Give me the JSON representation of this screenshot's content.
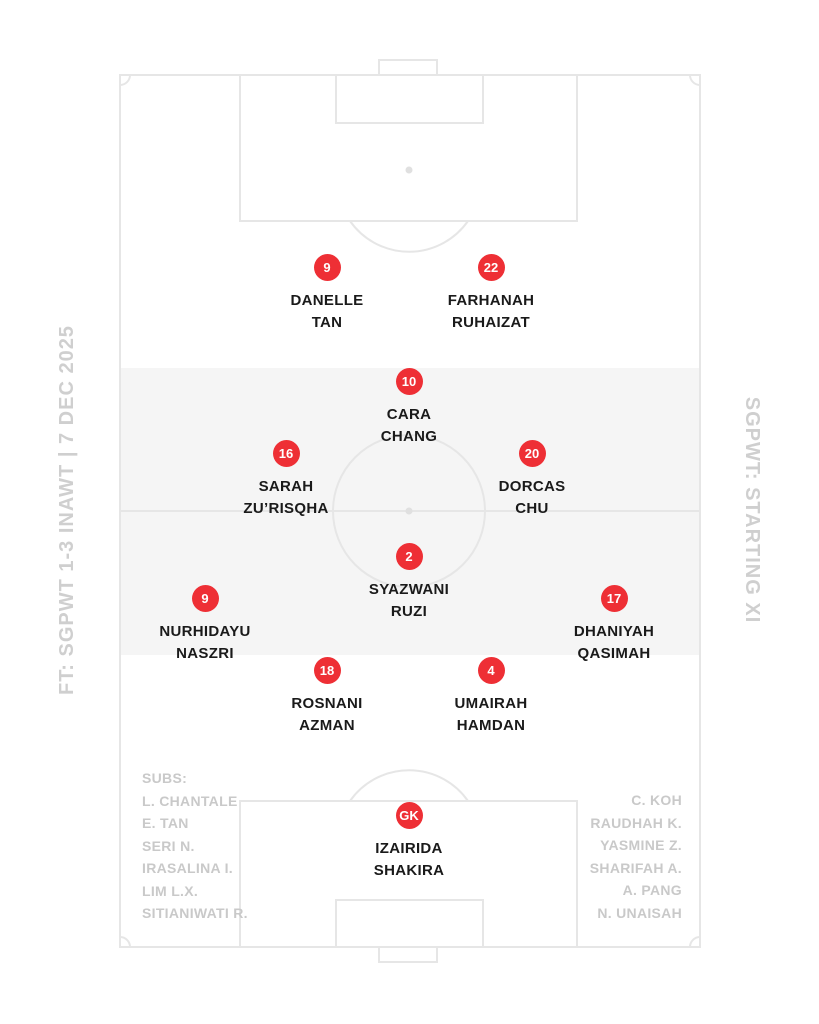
{
  "side_labels": {
    "left": "FT: SGPWT 1-3 INAWT | 7 DEC 2025",
    "right": "SGPWT: STARTING XI"
  },
  "colors": {
    "badge": "#ee2f35",
    "lines": "#e6e6e6",
    "band": "#f5f5f5",
    "names": "#1a1a1a",
    "subs": "#c9c9c9"
  },
  "players": [
    {
      "number": "9",
      "first": "DANELLE",
      "last": "TAN"
    },
    {
      "number": "22",
      "first": "FARHANAH",
      "last": "RUHAIZAT"
    },
    {
      "number": "10",
      "first": "CARA",
      "last": "CHANG"
    },
    {
      "number": "16",
      "first": "SARAH",
      "last": "ZU’RISQHA"
    },
    {
      "number": "20",
      "first": "DORCAS",
      "last": "CHU"
    },
    {
      "number": "2",
      "first": "SYAZWANI",
      "last": "RUZI"
    },
    {
      "number": "9",
      "first": "NURHIDAYU",
      "last": "NASZRI"
    },
    {
      "number": "17",
      "first": "DHANIYAH",
      "last": "QASIMAH"
    },
    {
      "number": "18",
      "first": "ROSNANI",
      "last": "AZMAN"
    },
    {
      "number": "4",
      "first": "UMAIRAH",
      "last": "HAMDAN"
    },
    {
      "number": "GK",
      "first": "IZAIRIDA",
      "last": "SHAKIRA"
    }
  ],
  "subs": {
    "title": "SUBS:",
    "left": [
      "L. CHANTALE",
      "E. TAN",
      "SERI N.",
      "IRASALINA I.",
      "LIM L.X.",
      "SITIANIWATI R."
    ],
    "right": [
      "C. KOH",
      "RAUDHAH K.",
      "YASMINE Z.",
      "SHARIFAH A.",
      "A. PANG",
      "N. UNAISAH"
    ]
  }
}
